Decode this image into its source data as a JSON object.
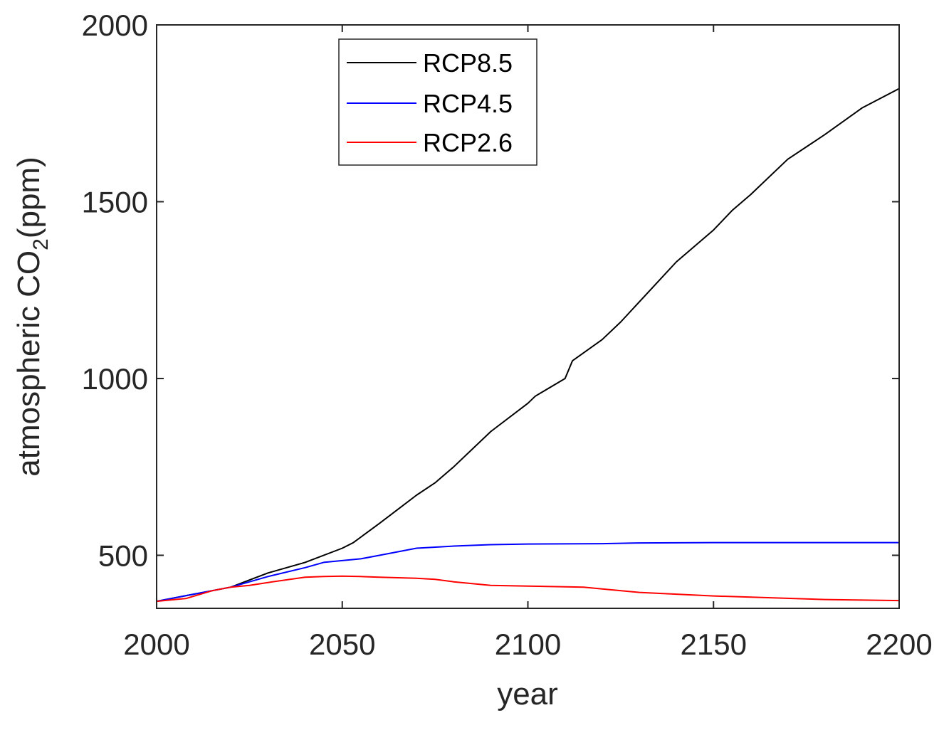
{
  "chart_data": {
    "type": "line",
    "title": "",
    "xlabel": "year",
    "ylabel_main": "atmospheric CO",
    "ylabel_sub": "2",
    "ylabel_tail": "(ppm)",
    "xlim": [
      2000,
      2200
    ],
    "ylim": [
      350,
      2000
    ],
    "xticks": [
      2000,
      2050,
      2100,
      2150,
      2200
    ],
    "yticks": [
      500,
      1000,
      1500,
      2000
    ],
    "grid": false,
    "legend_position": "top-center",
    "series": [
      {
        "name": "RCP8.5",
        "color": "#000000",
        "x": [
          2000,
          2010,
          2015,
          2020,
          2025,
          2030,
          2040,
          2050,
          2053,
          2060,
          2065,
          2070,
          2075,
          2080,
          2090,
          2100,
          2102,
          2110,
          2112,
          2120,
          2125,
          2140,
          2150,
          2155,
          2160,
          2170,
          2180,
          2190,
          2200
        ],
        "y": [
          370,
          390,
          400,
          410,
          430,
          450,
          480,
          520,
          536,
          590,
          630,
          670,
          705,
          750,
          850,
          930,
          950,
          1000,
          1050,
          1110,
          1160,
          1330,
          1420,
          1475,
          1520,
          1620,
          1690,
          1765,
          1820
        ]
      },
      {
        "name": "RCP4.5",
        "color": "#0000ff",
        "x": [
          2000,
          2010,
          2020,
          2030,
          2040,
          2045,
          2055,
          2060,
          2065,
          2070,
          2080,
          2090,
          2100,
          2120,
          2130,
          2150,
          2200
        ],
        "y": [
          370,
          390,
          410,
          440,
          465,
          480,
          490,
          500,
          510,
          520,
          526,
          530,
          532,
          533,
          535,
          536,
          536
        ]
      },
      {
        "name": "RCP2.6",
        "color": "#ff0000",
        "x": [
          2000,
          2008,
          2015,
          2020,
          2025,
          2030,
          2040,
          2045,
          2050,
          2055,
          2060,
          2070,
          2075,
          2080,
          2090,
          2100,
          2115,
          2120,
          2130,
          2150,
          2180,
          2200
        ],
        "y": [
          370,
          378,
          400,
          410,
          415,
          423,
          438,
          440,
          441,
          440,
          438,
          435,
          432,
          425,
          415,
          413,
          410,
          405,
          395,
          385,
          375,
          372
        ]
      }
    ]
  }
}
